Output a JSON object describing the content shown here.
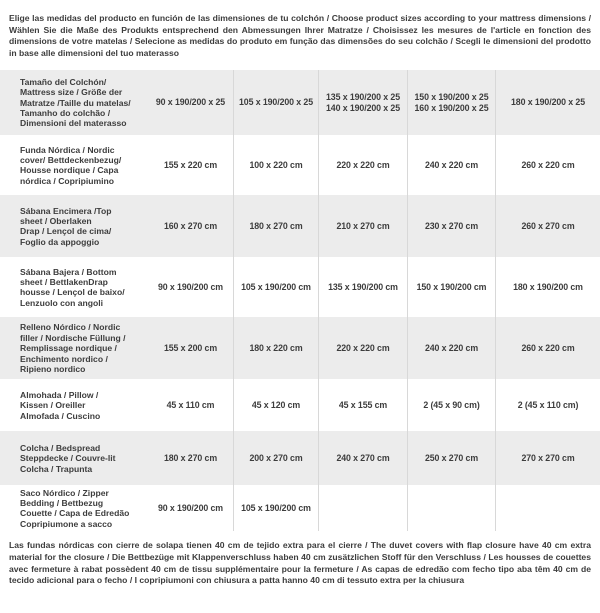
{
  "intro": "Elige las medidas del producto en función de las dimensiones de tu colchón / Choose product sizes according to your mattress dimensions / Wählen Sie die Maße des Produkts entsprechend den Abmessungen Ihrer Matratze / Choisissez les mesures de l'article en fonction des dimensions de votre matelas / Selecione as medidas do produto em função das dimensões do seu colchão / Scegli le dimensioni del prodotto in base alle dimensioni del tuo materasso",
  "footer": "Las fundas nórdicas con cierre de solapa tienen 40 cm de tejido extra para el cierre / The duvet covers with flap closure have 40 cm extra material for the closure / Die Bettbezüge mit Klappenverschluss haben 40 cm zusätzlichen Stoff für den Verschluss / Les housses de couettes avec fermeture à rabat possèdent 40 cm de tissu supplémentaire pour la fermeture / As capas de edredão com fecho tipo aba têm 40 cm de tecido adicional para o fecho / I copripiumoni con chiusura a patta hanno 40 cm di tessuto extra per la chiusura",
  "colors": {
    "row_band": "#ececec",
    "separator": "#d8d8d8",
    "text": "#3d3d3d"
  },
  "table": {
    "rows": [
      {
        "label": "Tamaño del Colchón/\nMattress size / Größe der\nMatratze /Taille du matelas/\nTamanho do colchão /\nDimensioni del materasso",
        "values": [
          "90 x 190/200 x 25",
          "105 x 190/200 x 25",
          "135 x 190/200 x 25\n140 x 190/200 x 25",
          "150 x 190/200 x 25\n160 x 190/200 x 25",
          "180 x 190/200 x 25"
        ]
      },
      {
        "label": "Funda Nórdica / Nordic\ncover/ Bettdeckenbezug/\nHousse nordique / Capa\nnórdica / Copripiumino",
        "values": [
          "155 x 220 cm",
          "100 x 220 cm",
          "220 x 220 cm",
          "240 x 220 cm",
          "260 x 220 cm"
        ]
      },
      {
        "label": "Sábana Encimera /Top\nsheet / Oberlaken\nDrap / Lençol de cima/\nFoglio da appoggio",
        "values": [
          "160 x 270 cm",
          "180 x 270 cm",
          "210 x 270 cm",
          "230 x 270 cm",
          "260 x 270 cm"
        ]
      },
      {
        "label": "Sábana Bajera / Bottom\nsheet / BettlakenDrap\nhousse / Lençol de baixo/\nLenzuolo con angoli",
        "values": [
          "90 x 190/200 cm",
          "105 x 190/200 cm",
          "135 x 190/200 cm",
          "150 x 190/200 cm",
          "180 x 190/200 cm"
        ]
      },
      {
        "label": "Relleno Nórdico / Nordic\nfiller / Nordische Füllung /\nRemplissage nordique /\nEnchimento nordico /\nRipieno nordico",
        "values": [
          "155 x 200 cm",
          "180 x 220 cm",
          "220 x 220 cm",
          "240 x 220 cm",
          "260 x 220 cm"
        ]
      },
      {
        "label": "Almohada / Pillow /\nKissen / Oreiller\nAlmofada / Cuscino",
        "values": [
          "45 x 110 cm",
          "45 x 120 cm",
          "45 x 155 cm",
          "2 (45 x 90 cm)",
          "2 (45 x 110 cm)"
        ]
      },
      {
        "label": "Colcha / Bedspread\nSteppdecke / Couvre-lit\nColcha / Trapunta",
        "values": [
          "180 x 270 cm",
          "200 x 270 cm",
          "240 x 270 cm",
          "250 x 270 cm",
          "270 x 270 cm"
        ]
      },
      {
        "label": "Saco Nórdico / Zipper\nBedding / Bettbezug\nCouette / Capa de Edredão\nCopripiumone a sacco",
        "values": [
          "90 x 190/200 cm",
          "105 x 190/200 cm",
          "",
          "",
          ""
        ]
      }
    ]
  }
}
